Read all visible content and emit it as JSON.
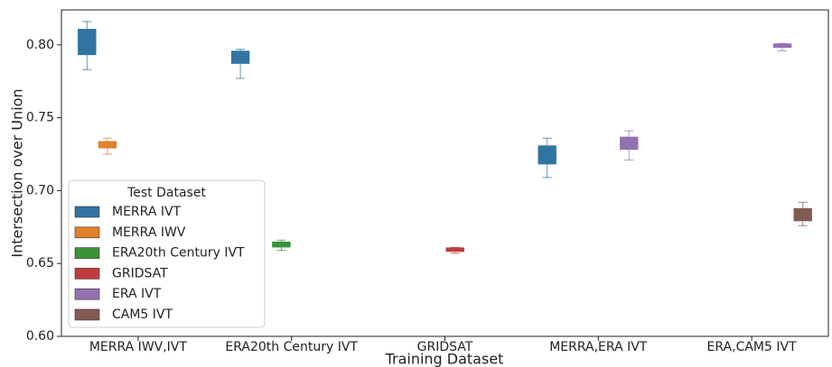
{
  "chart_data": {
    "type": "box",
    "x_label": "Training Dataset",
    "y_label": "Intersection over Union",
    "categories": [
      "MERRA IWV,IVT",
      "ERA20th Century IVT",
      "GRIDSAT",
      "MERRA,ERA IVT",
      "ERA,CAM5 IVT"
    ],
    "ylim": [
      0.6,
      0.824
    ],
    "yticks": [
      {
        "value": 0.6,
        "label": "0.60"
      },
      0.65,
      {
        "value": 0.7,
        "label": "0.70"
      },
      0.75,
      {
        "value": 0.8,
        "label": "0.80"
      }
    ],
    "legend_title": "Test Dataset",
    "legend": "lower left",
    "series": [
      {
        "name": "MERRA IVT",
        "color": "#3274a1",
        "min": [
          0.783,
          0.777,
          null,
          0.709,
          null
        ],
        "q1": [
          0.793,
          0.787,
          null,
          0.718,
          null
        ],
        "median": [
          0.802,
          0.791,
          null,
          0.725,
          null
        ],
        "q3": [
          0.811,
          0.796,
          null,
          0.731,
          null
        ],
        "max": [
          0.816,
          0.797,
          null,
          0.736,
          null
        ]
      },
      {
        "name": "MERRA IWV",
        "color": "#e1812c",
        "min": [
          0.725,
          null,
          null,
          null,
          null
        ],
        "q1": [
          0.729,
          null,
          null,
          null,
          null
        ],
        "median": [
          0.732,
          null,
          null,
          null,
          null
        ],
        "q3": [
          0.734,
          null,
          null,
          null,
          null
        ],
        "max": [
          0.736,
          null,
          null,
          null,
          null
        ]
      },
      {
        "name": "ERA20th Century IVT",
        "color": "#3a923a",
        "min": [
          null,
          0.659,
          null,
          null,
          null
        ],
        "q1": [
          null,
          0.661,
          null,
          null,
          null
        ],
        "median": [
          null,
          0.663,
          null,
          null,
          null
        ],
        "q3": [
          null,
          0.665,
          null,
          null,
          null
        ],
        "max": [
          null,
          0.666,
          null,
          null,
          null
        ]
      },
      {
        "name": "GRIDSAT",
        "color": "#c03d3e",
        "min": [
          null,
          null,
          0.657,
          null,
          null
        ],
        "q1": [
          null,
          null,
          0.658,
          null,
          null
        ],
        "median": [
          null,
          null,
          0.659,
          null,
          null
        ],
        "q3": [
          null,
          null,
          0.661,
          null,
          null
        ],
        "max": [
          null,
          null,
          0.661,
          null,
          null
        ]
      },
      {
        "name": "ERA IVT",
        "color": "#9372b2",
        "min": [
          null,
          null,
          null,
          0.721,
          0.796
        ],
        "q1": [
          null,
          null,
          null,
          0.728,
          0.798
        ],
        "median": [
          null,
          null,
          null,
          0.732,
          0.799
        ],
        "q3": [
          null,
          null,
          null,
          0.737,
          0.801
        ],
        "max": [
          null,
          null,
          null,
          0.741,
          0.801
        ]
      },
      {
        "name": "CAM5 IVT",
        "color": "#845b53",
        "min": [
          null,
          null,
          null,
          null,
          0.676
        ],
        "q1": [
          null,
          null,
          null,
          null,
          0.679
        ],
        "median": [
          null,
          null,
          null,
          null,
          0.683
        ],
        "q3": [
          null,
          null,
          null,
          null,
          0.688
        ],
        "max": [
          null,
          null,
          null,
          null,
          0.692
        ]
      }
    ]
  }
}
